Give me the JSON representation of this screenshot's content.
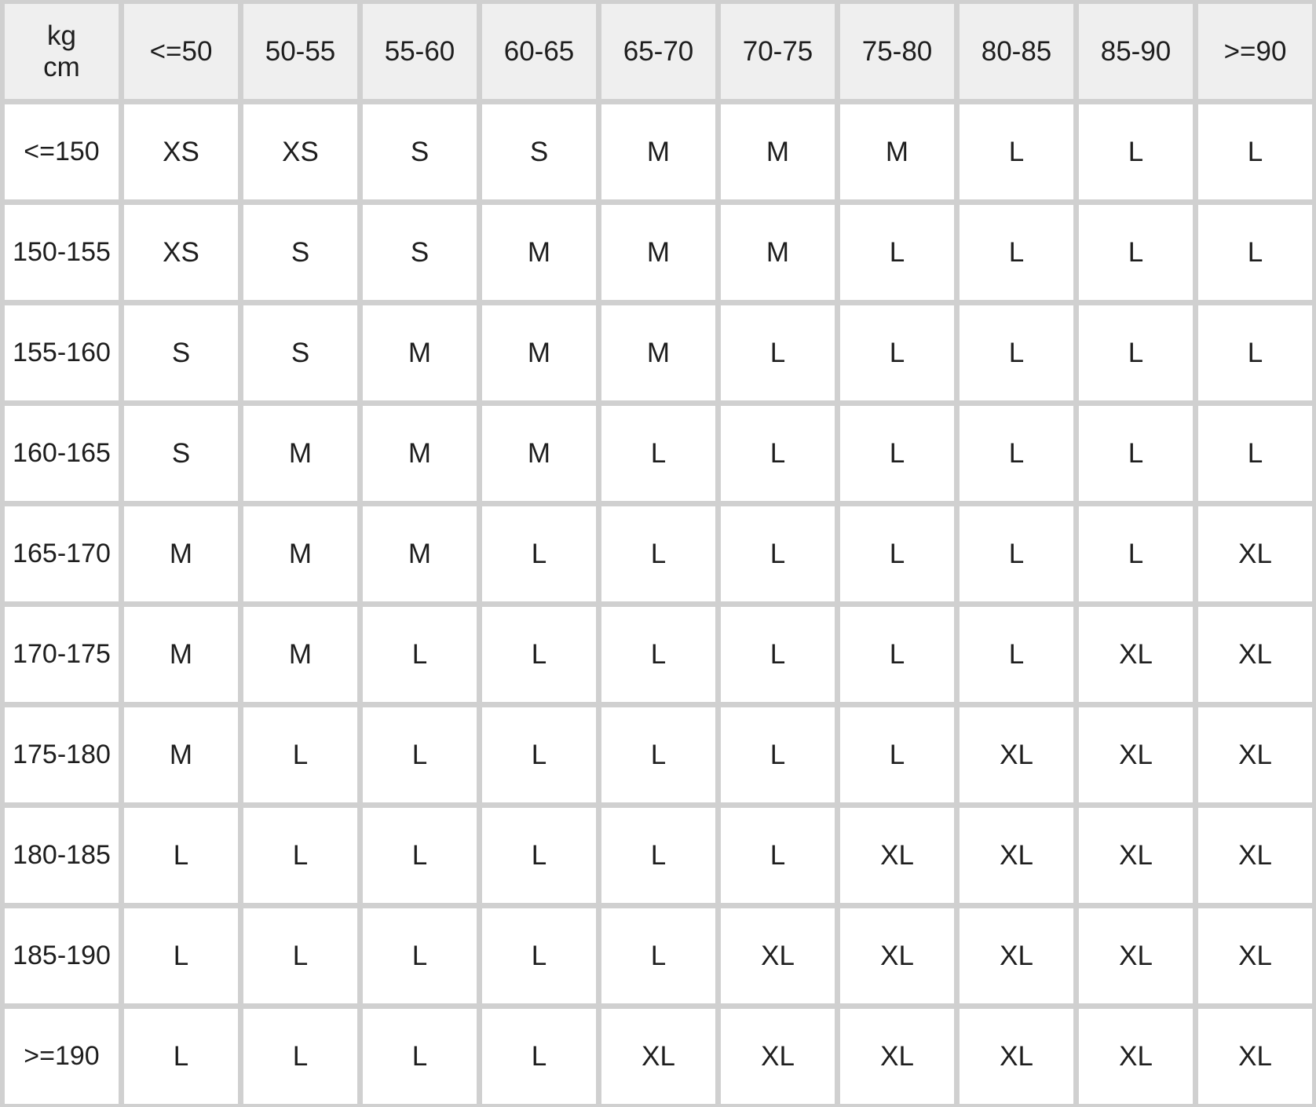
{
  "table": {
    "corner": {
      "top": "kg",
      "bottom": "cm"
    },
    "columns": [
      "<=50",
      "50-55",
      "55-60",
      "60-65",
      "65-70",
      "70-75",
      "75-80",
      "80-85",
      "85-90",
      ">=90"
    ],
    "rows": [
      {
        "label": "<=150",
        "cells": [
          "XS",
          "XS",
          "S",
          "S",
          "M",
          "M",
          "M",
          "L",
          "L",
          "L"
        ]
      },
      {
        "label": "150-155",
        "cells": [
          "XS",
          "S",
          "S",
          "M",
          "M",
          "M",
          "L",
          "L",
          "L",
          "L"
        ]
      },
      {
        "label": "155-160",
        "cells": [
          "S",
          "S",
          "M",
          "M",
          "M",
          "L",
          "L",
          "L",
          "L",
          "L"
        ]
      },
      {
        "label": "160-165",
        "cells": [
          "S",
          "M",
          "M",
          "M",
          "L",
          "L",
          "L",
          "L",
          "L",
          "L"
        ]
      },
      {
        "label": "165-170",
        "cells": [
          "M",
          "M",
          "M",
          "L",
          "L",
          "L",
          "L",
          "L",
          "L",
          "XL"
        ]
      },
      {
        "label": "170-175",
        "cells": [
          "M",
          "M",
          "L",
          "L",
          "L",
          "L",
          "L",
          "L",
          "XL",
          "XL"
        ]
      },
      {
        "label": "175-180",
        "cells": [
          "M",
          "L",
          "L",
          "L",
          "L",
          "L",
          "L",
          "XL",
          "XL",
          "XL"
        ]
      },
      {
        "label": "180-185",
        "cells": [
          "L",
          "L",
          "L",
          "L",
          "L",
          "L",
          "XL",
          "XL",
          "XL",
          "XL"
        ]
      },
      {
        "label": "185-190",
        "cells": [
          "L",
          "L",
          "L",
          "L",
          "L",
          "XL",
          "XL",
          "XL",
          "XL",
          "XL"
        ]
      },
      {
        "label": ">=190",
        "cells": [
          "L",
          "L",
          "L",
          "L",
          "XL",
          "XL",
          "XL",
          "XL",
          "XL",
          "XL"
        ]
      }
    ]
  }
}
